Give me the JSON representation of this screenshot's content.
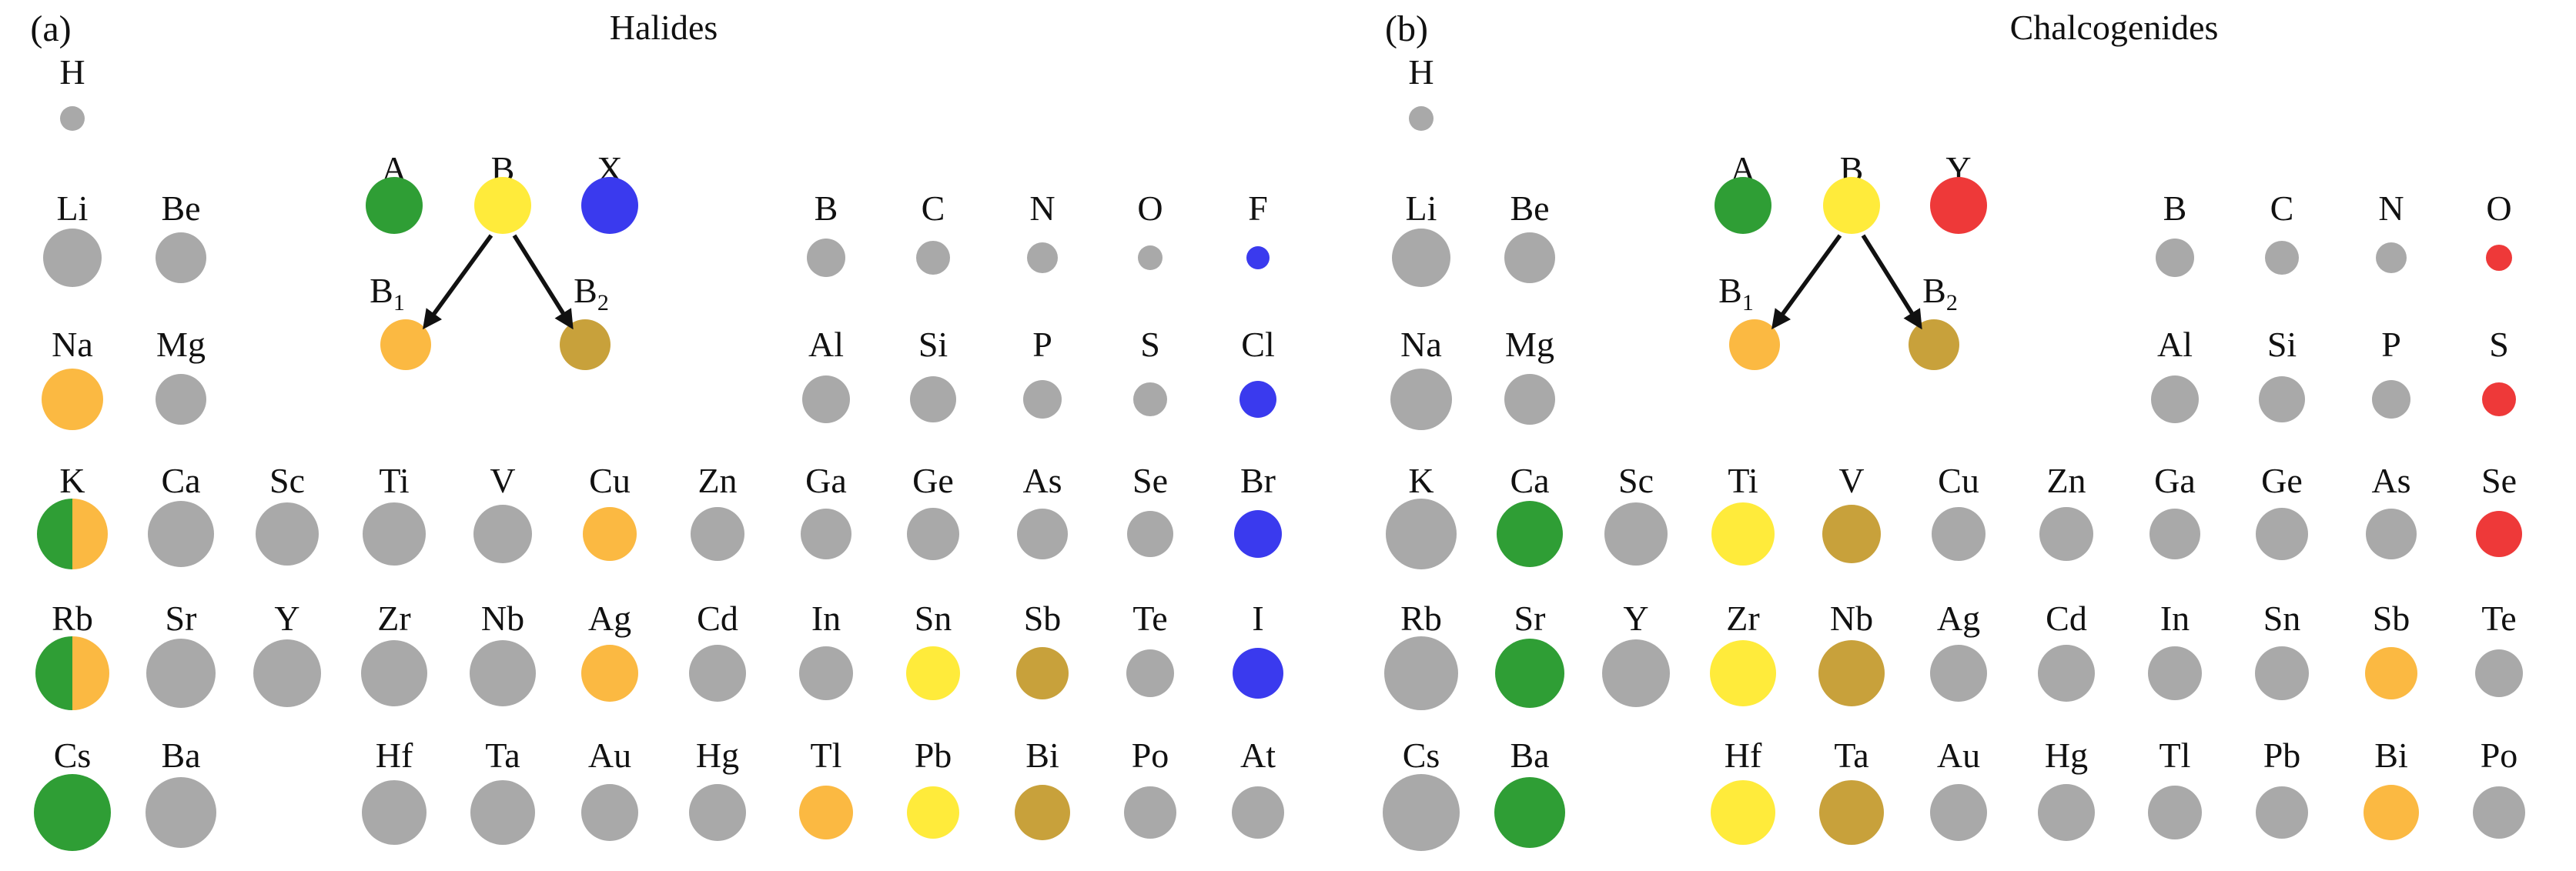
{
  "figure": {
    "colors": {
      "gray": "#A9A9A9",
      "green": "#2F9E35",
      "yellow": "#FFEB3B",
      "blue": "#3A3AEE",
      "red": "#EE3939",
      "orange": "#FBB942",
      "dark_gold": "#C8A13B",
      "split_green_orange": "split",
      "arrow": "#111111"
    },
    "panels": [
      {
        "id": "a",
        "index_label": "(a)",
        "title": "Halides",
        "legend": {
          "top": [
            {
              "label": "A",
              "color": "green"
            },
            {
              "label": "B",
              "color": "yellow"
            },
            {
              "label": "X",
              "color": "blue"
            }
          ],
          "substitutions": [
            {
              "label": "B",
              "sub": "1",
              "color": "orange"
            },
            {
              "label": "B",
              "sub": "2",
              "color": "dark_gold"
            }
          ]
        },
        "elements": [
          {
            "symbol": "H",
            "row": 0,
            "col": 0,
            "color": "gray",
            "r": 16
          },
          {
            "symbol": "Li",
            "row": 1,
            "col": 0,
            "color": "gray",
            "r": 38
          },
          {
            "symbol": "Be",
            "row": 1,
            "col": 1,
            "color": "gray",
            "r": 33
          },
          {
            "symbol": "B",
            "row": 1,
            "col": 7,
            "color": "gray",
            "r": 25
          },
          {
            "symbol": "C",
            "row": 1,
            "col": 8,
            "color": "gray",
            "r": 22
          },
          {
            "symbol": "N",
            "row": 1,
            "col": 9,
            "color": "gray",
            "r": 20
          },
          {
            "symbol": "O",
            "row": 1,
            "col": 10,
            "color": "gray",
            "r": 16
          },
          {
            "symbol": "F",
            "row": 1,
            "col": 11,
            "color": "blue",
            "r": 15
          },
          {
            "symbol": "Na",
            "row": 2,
            "col": 0,
            "color": "orange",
            "r": 40
          },
          {
            "symbol": "Mg",
            "row": 2,
            "col": 1,
            "color": "gray",
            "r": 33
          },
          {
            "symbol": "Al",
            "row": 2,
            "col": 7,
            "color": "gray",
            "r": 31
          },
          {
            "symbol": "Si",
            "row": 2,
            "col": 8,
            "color": "gray",
            "r": 30
          },
          {
            "symbol": "P",
            "row": 2,
            "col": 9,
            "color": "gray",
            "r": 25
          },
          {
            "symbol": "S",
            "row": 2,
            "col": 10,
            "color": "gray",
            "r": 22
          },
          {
            "symbol": "Cl",
            "row": 2,
            "col": 11,
            "color": "blue",
            "r": 24
          },
          {
            "symbol": "K",
            "row": 3,
            "col": 0,
            "color": "split_green_orange",
            "r": 46
          },
          {
            "symbol": "Ca",
            "row": 3,
            "col": 1,
            "color": "gray",
            "r": 43
          },
          {
            "symbol": "Sc",
            "row": 3,
            "col": 2,
            "color": "gray",
            "r": 41
          },
          {
            "symbol": "Ti",
            "row": 3,
            "col": 3,
            "color": "gray",
            "r": 41
          },
          {
            "symbol": "V",
            "row": 3,
            "col": 4,
            "color": "gray",
            "r": 38
          },
          {
            "symbol": "Cu",
            "row": 3,
            "col": 5,
            "color": "orange",
            "r": 35
          },
          {
            "symbol": "Zn",
            "row": 3,
            "col": 6,
            "color": "gray",
            "r": 35
          },
          {
            "symbol": "Ga",
            "row": 3,
            "col": 7,
            "color": "gray",
            "r": 33
          },
          {
            "symbol": "Ge",
            "row": 3,
            "col": 8,
            "color": "gray",
            "r": 34
          },
          {
            "symbol": "As",
            "row": 3,
            "col": 9,
            "color": "gray",
            "r": 33
          },
          {
            "symbol": "Se",
            "row": 3,
            "col": 10,
            "color": "gray",
            "r": 30
          },
          {
            "symbol": "Br",
            "row": 3,
            "col": 11,
            "color": "blue",
            "r": 31
          },
          {
            "symbol": "Rb",
            "row": 4,
            "col": 0,
            "color": "split_green_orange",
            "r": 48
          },
          {
            "symbol": "Sr",
            "row": 4,
            "col": 1,
            "color": "gray",
            "r": 45
          },
          {
            "symbol": "Y",
            "row": 4,
            "col": 2,
            "color": "gray",
            "r": 44
          },
          {
            "symbol": "Zr",
            "row": 4,
            "col": 3,
            "color": "gray",
            "r": 43
          },
          {
            "symbol": "Nb",
            "row": 4,
            "col": 4,
            "color": "gray",
            "r": 43
          },
          {
            "symbol": "Ag",
            "row": 4,
            "col": 5,
            "color": "orange",
            "r": 37
          },
          {
            "symbol": "Cd",
            "row": 4,
            "col": 6,
            "color": "gray",
            "r": 37
          },
          {
            "symbol": "In",
            "row": 4,
            "col": 7,
            "color": "gray",
            "r": 35
          },
          {
            "symbol": "Sn",
            "row": 4,
            "col": 8,
            "color": "yellow",
            "r": 35
          },
          {
            "symbol": "Sb",
            "row": 4,
            "col": 9,
            "color": "dark_gold",
            "r": 34
          },
          {
            "symbol": "Te",
            "row": 4,
            "col": 10,
            "color": "gray",
            "r": 31
          },
          {
            "symbol": "I",
            "row": 4,
            "col": 11,
            "color": "blue",
            "r": 33
          },
          {
            "symbol": "Cs",
            "row": 5,
            "col": 0,
            "color": "green",
            "r": 50
          },
          {
            "symbol": "Ba",
            "row": 5,
            "col": 1,
            "color": "gray",
            "r": 46
          },
          {
            "symbol": "Hf",
            "row": 5,
            "col": 3,
            "color": "gray",
            "r": 42
          },
          {
            "symbol": "Ta",
            "row": 5,
            "col": 4,
            "color": "gray",
            "r": 42
          },
          {
            "symbol": "Au",
            "row": 5,
            "col": 5,
            "color": "gray",
            "r": 37
          },
          {
            "symbol": "Hg",
            "row": 5,
            "col": 6,
            "color": "gray",
            "r": 37
          },
          {
            "symbol": "Tl",
            "row": 5,
            "col": 7,
            "color": "orange",
            "r": 35
          },
          {
            "symbol": "Pb",
            "row": 5,
            "col": 8,
            "color": "yellow",
            "r": 34
          },
          {
            "symbol": "Bi",
            "row": 5,
            "col": 9,
            "color": "dark_gold",
            "r": 36
          },
          {
            "symbol": "Po",
            "row": 5,
            "col": 10,
            "color": "gray",
            "r": 34
          },
          {
            "symbol": "At",
            "row": 5,
            "col": 11,
            "color": "gray",
            "r": 34
          }
        ]
      },
      {
        "id": "b",
        "index_label": "(b)",
        "title": "Chalcogenides",
        "legend": {
          "top": [
            {
              "label": "A",
              "color": "green"
            },
            {
              "label": "B",
              "color": "yellow"
            },
            {
              "label": "Y",
              "color": "red"
            }
          ],
          "substitutions": [
            {
              "label": "B",
              "sub": "1",
              "color": "orange"
            },
            {
              "label": "B",
              "sub": "2",
              "color": "dark_gold"
            }
          ]
        },
        "elements": [
          {
            "symbol": "H",
            "row": 0,
            "col": 0,
            "color": "gray",
            "r": 16
          },
          {
            "symbol": "Li",
            "row": 1,
            "col": 0,
            "color": "gray",
            "r": 38
          },
          {
            "symbol": "Be",
            "row": 1,
            "col": 1,
            "color": "gray",
            "r": 33
          },
          {
            "symbol": "B",
            "row": 1,
            "col": 7,
            "color": "gray",
            "r": 25
          },
          {
            "symbol": "C",
            "row": 1,
            "col": 8,
            "color": "gray",
            "r": 22
          },
          {
            "symbol": "N",
            "row": 1,
            "col": 9,
            "color": "gray",
            "r": 20
          },
          {
            "symbol": "O",
            "row": 1,
            "col": 10,
            "color": "red",
            "r": 17
          },
          {
            "symbol": "Na",
            "row": 2,
            "col": 0,
            "color": "gray",
            "r": 40
          },
          {
            "symbol": "Mg",
            "row": 2,
            "col": 1,
            "color": "gray",
            "r": 33
          },
          {
            "symbol": "Al",
            "row": 2,
            "col": 7,
            "color": "gray",
            "r": 31
          },
          {
            "symbol": "Si",
            "row": 2,
            "col": 8,
            "color": "gray",
            "r": 30
          },
          {
            "symbol": "P",
            "row": 2,
            "col": 9,
            "color": "gray",
            "r": 25
          },
          {
            "symbol": "S",
            "row": 2,
            "col": 10,
            "color": "red",
            "r": 22
          },
          {
            "symbol": "K",
            "row": 3,
            "col": 0,
            "color": "gray",
            "r": 46
          },
          {
            "symbol": "Ca",
            "row": 3,
            "col": 1,
            "color": "green",
            "r": 43
          },
          {
            "symbol": "Sc",
            "row": 3,
            "col": 2,
            "color": "gray",
            "r": 41
          },
          {
            "symbol": "Ti",
            "row": 3,
            "col": 3,
            "color": "yellow",
            "r": 41
          },
          {
            "symbol": "V",
            "row": 3,
            "col": 4,
            "color": "dark_gold",
            "r": 38
          },
          {
            "symbol": "Cu",
            "row": 3,
            "col": 5,
            "color": "gray",
            "r": 35
          },
          {
            "symbol": "Zn",
            "row": 3,
            "col": 6,
            "color": "gray",
            "r": 35
          },
          {
            "symbol": "Ga",
            "row": 3,
            "col": 7,
            "color": "gray",
            "r": 33
          },
          {
            "symbol": "Ge",
            "row": 3,
            "col": 8,
            "color": "gray",
            "r": 34
          },
          {
            "symbol": "As",
            "row": 3,
            "col": 9,
            "color": "gray",
            "r": 33
          },
          {
            "symbol": "Se",
            "row": 3,
            "col": 10,
            "color": "red",
            "r": 30
          },
          {
            "symbol": "Rb",
            "row": 4,
            "col": 0,
            "color": "gray",
            "r": 48
          },
          {
            "symbol": "Sr",
            "row": 4,
            "col": 1,
            "color": "green",
            "r": 45
          },
          {
            "symbol": "Y",
            "row": 4,
            "col": 2,
            "color": "gray",
            "r": 44
          },
          {
            "symbol": "Zr",
            "row": 4,
            "col": 3,
            "color": "yellow",
            "r": 43
          },
          {
            "symbol": "Nb",
            "row": 4,
            "col": 4,
            "color": "dark_gold",
            "r": 43
          },
          {
            "symbol": "Ag",
            "row": 4,
            "col": 5,
            "color": "gray",
            "r": 37
          },
          {
            "symbol": "Cd",
            "row": 4,
            "col": 6,
            "color": "gray",
            "r": 37
          },
          {
            "symbol": "In",
            "row": 4,
            "col": 7,
            "color": "gray",
            "r": 35
          },
          {
            "symbol": "Sn",
            "row": 4,
            "col": 8,
            "color": "gray",
            "r": 35
          },
          {
            "symbol": "Sb",
            "row": 4,
            "col": 9,
            "color": "orange",
            "r": 34
          },
          {
            "symbol": "Te",
            "row": 4,
            "col": 10,
            "color": "gray",
            "r": 31
          },
          {
            "symbol": "Cs",
            "row": 5,
            "col": 0,
            "color": "gray",
            "r": 50
          },
          {
            "symbol": "Ba",
            "row": 5,
            "col": 1,
            "color": "green",
            "r": 46
          },
          {
            "symbol": "Hf",
            "row": 5,
            "col": 3,
            "color": "yellow",
            "r": 42
          },
          {
            "symbol": "Ta",
            "row": 5,
            "col": 4,
            "color": "dark_gold",
            "r": 42
          },
          {
            "symbol": "Au",
            "row": 5,
            "col": 5,
            "color": "gray",
            "r": 37
          },
          {
            "symbol": "Hg",
            "row": 5,
            "col": 6,
            "color": "gray",
            "r": 37
          },
          {
            "symbol": "Tl",
            "row": 5,
            "col": 7,
            "color": "gray",
            "r": 35
          },
          {
            "symbol": "Pb",
            "row": 5,
            "col": 8,
            "color": "gray",
            "r": 34
          },
          {
            "symbol": "Bi",
            "row": 5,
            "col": 9,
            "color": "orange",
            "r": 36
          },
          {
            "symbol": "Po",
            "row": 5,
            "col": 10,
            "color": "gray",
            "r": 34
          }
        ]
      }
    ]
  }
}
